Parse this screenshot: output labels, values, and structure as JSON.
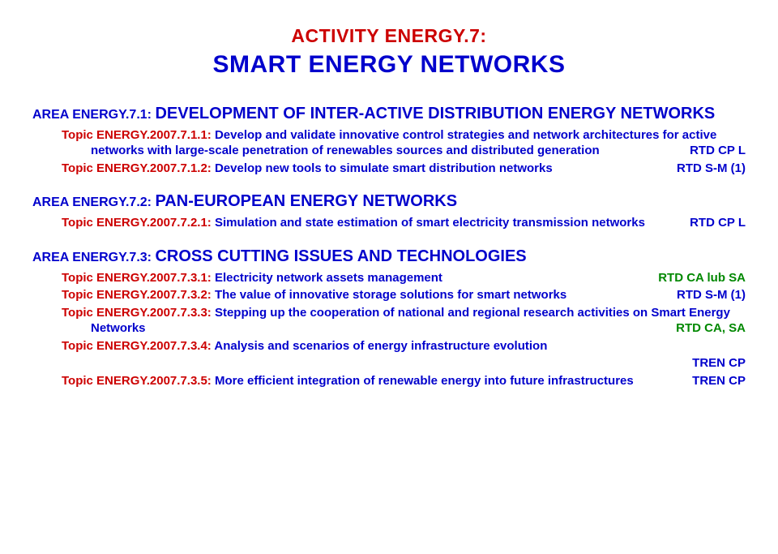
{
  "colors": {
    "red": "#cc0000",
    "blue": "#0000cc",
    "green": "#008800",
    "background": "#ffffff"
  },
  "fonts": {
    "family": "Verdana, Arial, sans-serif",
    "title_activity_size": 23,
    "title_smart_size": 30,
    "area_prefix_size": 16,
    "area_name_size": 20,
    "topic_size": 15
  },
  "title": {
    "activity": "ACTIVITY ENERGY.7:",
    "smart": "SMART ENERGY NETWORKS"
  },
  "areas": [
    {
      "prefix": "AREA ENERGY.7.1: ",
      "name": "DEVELOPMENT OF INTER-ACTIVE DISTRIBUTION ENERGY NETWORKS",
      "topics": [
        {
          "id": "Topic ENERGY.2007.7.1.1: ",
          "text": "Develop and validate innovative control strategies and network architectures for active networks with large-scale penetration of renewables sources and distributed generation",
          "indent_cont": true,
          "tag": "RTD CP L",
          "tag_color": "blue"
        },
        {
          "id": "Topic ENERGY.2007.7.1.2: ",
          "text": "Develop new tools to simulate smart distribution networks",
          "indent_cont": true,
          "tag": "RTD S-M (1)",
          "tag_color": "blue"
        }
      ]
    },
    {
      "prefix": "AREA ENERGY.7.2: ",
      "name": "PAN-EUROPEAN ENERGY NETWORKS",
      "topics": [
        {
          "id": "Topic ENERGY.2007.7.2.1: ",
          "text": "Simulation and state estimation of smart electricity transmission networks",
          "extra_indent": true,
          "tag": "RTD CP L",
          "tag_color": "blue"
        }
      ]
    },
    {
      "prefix": "AREA ENERGY.7.3: ",
      "name": "CROSS CUTTING ISSUES AND TECHNOLOGIES",
      "topics": [
        {
          "id": "Topic ENERGY.2007.7.3.1: ",
          "text": "Electricity network assets management",
          "tag": "RTD CA lub SA",
          "tag_color": "green"
        },
        {
          "id": "Topic ENERGY.2007.7.3.2: ",
          "text": "The value of innovative storage solutions for smart networks",
          "indent_cont": true,
          "tag": "RTD S-M (1)",
          "tag_color": "blue"
        },
        {
          "id": "Topic ENERGY.2007.7.3.3: ",
          "text": "Stepping up the cooperation of national and regional research activities on Smart Energy Networks",
          "indent_cont": true,
          "tag": "RTD CA, SA",
          "tag_color": "green"
        },
        {
          "id": "Topic ENERGY.2007.7.3.4: ",
          "text": "Analysis and scenarios of energy infrastructure evolution",
          "tag": "TREN CP",
          "tag_color": "blue",
          "tag_below": true
        },
        {
          "id": "Topic ENERGY.2007.7.3.5: ",
          "text": "More efficient integration of renewable energy into future infrastructures",
          "indent_cont": true,
          "tag": "TREN CP",
          "tag_color": "blue"
        }
      ]
    }
  ]
}
